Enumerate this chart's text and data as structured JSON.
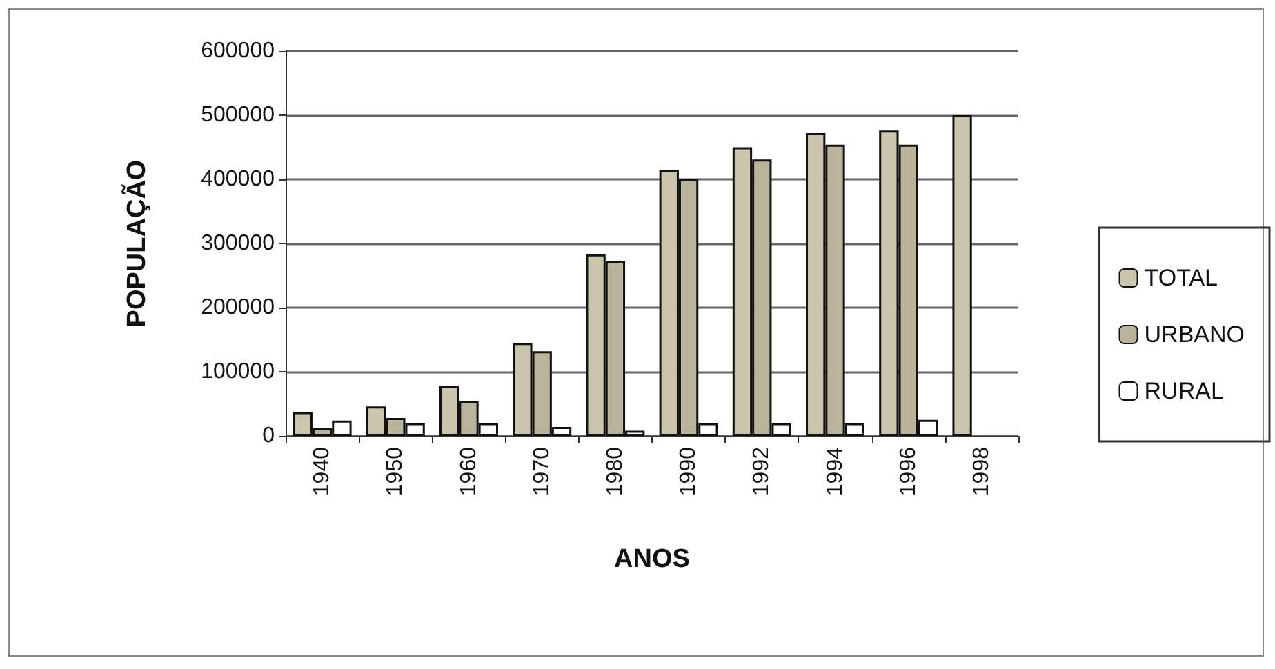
{
  "chart_data": {
    "type": "bar",
    "xlabel": "ANOS",
    "ylabel": "POPULAÇÃO",
    "categories": [
      "1940",
      "1950",
      "1960",
      "1970",
      "1980",
      "1990",
      "1992",
      "1994",
      "1996",
      "1998"
    ],
    "series": [
      {
        "name": "TOTAL",
        "color": "#cbc5ae",
        "values": [
          37000,
          46000,
          78000,
          145000,
          283000,
          415000,
          450000,
          472000,
          476000,
          500000
        ]
      },
      {
        "name": "URBANO",
        "color": "#b9b39b",
        "values": [
          12000,
          28000,
          54000,
          132000,
          273000,
          400000,
          431000,
          454000,
          454000,
          null
        ]
      },
      {
        "name": "RURAL",
        "color": "#ffffff",
        "values": [
          24000,
          20000,
          20000,
          14000,
          8000,
          20000,
          20000,
          20000,
          25000,
          null
        ]
      }
    ],
    "ylim": [
      0,
      600000
    ],
    "yticks": [
      0,
      100000,
      200000,
      300000,
      400000,
      500000,
      600000
    ],
    "grid": "y",
    "legend": "right"
  }
}
